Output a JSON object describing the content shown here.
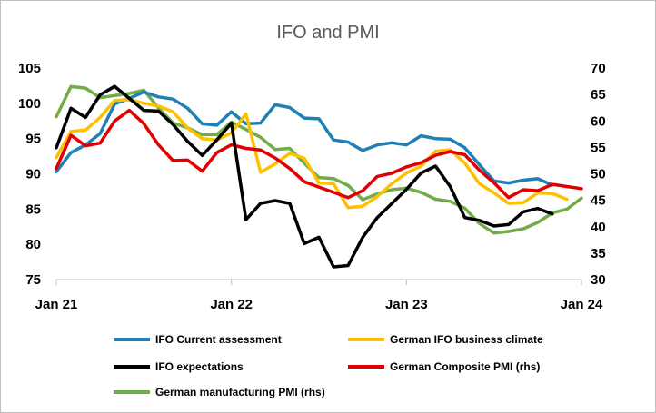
{
  "chart_data": {
    "type": "line",
    "title": "IFO and PMI",
    "x_ticks": [
      "Jan 21",
      "Jan 22",
      "Jan 23",
      "Jan 24"
    ],
    "x_start": "2021-01",
    "x_end": "2024-01",
    "y_left": {
      "min": 75,
      "max": 105,
      "ticks": [
        75,
        80,
        85,
        90,
        95,
        100,
        105
      ]
    },
    "y_right": {
      "min": 30,
      "max": 70,
      "ticks": [
        30,
        35,
        40,
        45,
        50,
        55,
        60,
        65,
        70
      ]
    },
    "grid": false,
    "legend_position": "bottom",
    "series": [
      {
        "name": "IFO Current assessment",
        "axis": "left",
        "color": "#1f80b4",
        "values": [
          90.3,
          93.0,
          94.1,
          95.7,
          99.9,
          100.7,
          101.6,
          100.9,
          100.6,
          99.3,
          97.1,
          96.9,
          98.8,
          97.1,
          97.2,
          99.8,
          99.4,
          97.9,
          97.8,
          94.8,
          94.5,
          93.3,
          94.1,
          94.4,
          94.1,
          95.4,
          95.0,
          94.9,
          93.7,
          91.3,
          89.0,
          88.7,
          89.1,
          89.3,
          88.4
        ]
      },
      {
        "name": "German IFO business climate",
        "axis": "left",
        "color": "#ffc000",
        "values": [
          92.3,
          96.0,
          96.2,
          98.0,
          100.4,
          100.5,
          100.0,
          99.6,
          98.8,
          96.5,
          95.0,
          94.8,
          95.8,
          98.5,
          90.2,
          91.4,
          92.9,
          92.2,
          88.7,
          88.6,
          85.2,
          85.4,
          86.8,
          88.6,
          90.1,
          91.1,
          93.2,
          93.4,
          91.5,
          88.6,
          87.3,
          85.8,
          85.9,
          87.3,
          87.2,
          86.4
        ]
      },
      {
        "name": "IFO expectations",
        "axis": "left",
        "color": "#000000",
        "values": [
          93.7,
          99.3,
          98.0,
          101.2,
          102.4,
          100.7,
          99.0,
          98.9,
          97.0,
          94.6,
          92.6,
          94.8,
          97.2,
          83.5,
          85.8,
          86.2,
          85.8,
          80.1,
          81.0,
          76.8,
          77.0,
          81.0,
          83.8,
          85.8,
          87.8,
          90.1,
          91.1,
          88.2,
          83.8,
          83.4,
          82.6,
          82.8,
          84.6,
          85.1,
          84.3
        ]
      },
      {
        "name": "German Composite PMI (rhs)",
        "axis": "right",
        "color": "#e00000",
        "values": [
          51.0,
          57.3,
          55.3,
          55.8,
          60.0,
          62.0,
          59.5,
          55.5,
          52.5,
          52.6,
          50.5,
          54.0,
          55.5,
          54.8,
          54.5,
          53.0,
          51.0,
          48.5,
          47.5,
          46.5,
          45.5,
          46.8,
          49.5,
          50.1,
          51.3,
          52.1,
          53.5,
          54.2,
          53.6,
          50.7,
          48.3,
          45.5,
          47.0,
          46.8,
          48.0,
          47.6,
          47.2
        ]
      },
      {
        "name": "German manufacturing PMI (rhs)",
        "axis": "right",
        "color": "#70ad47",
        "values": [
          60.8,
          66.5,
          66.2,
          64.4,
          64.8,
          65.2,
          65.8,
          62.5,
          59.6,
          58.7,
          57.4,
          57.4,
          59.8,
          58.4,
          56.9,
          54.6,
          54.8,
          52.0,
          49.3,
          49.1,
          47.8,
          45.1,
          46.2,
          47.0,
          47.3,
          46.5,
          45.2,
          44.8,
          43.5,
          40.6,
          38.8,
          39.1,
          39.6,
          40.8,
          42.6,
          43.3,
          45.4
        ]
      }
    ]
  }
}
